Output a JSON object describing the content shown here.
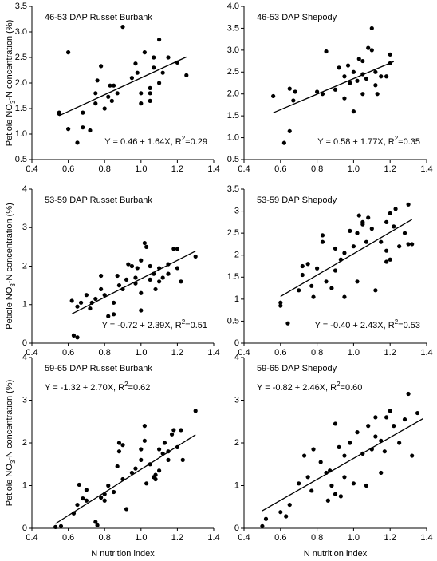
{
  "chart_data": [
    {
      "type": "scatter",
      "title": "46-53 DAP  Russet Burbank",
      "color": "#000000",
      "x": [
        0.55,
        0.55,
        0.6,
        0.6,
        0.65,
        0.68,
        0.68,
        0.72,
        0.75,
        0.75,
        0.76,
        0.78,
        0.8,
        0.82,
        0.83,
        0.84,
        0.85,
        0.87,
        0.9,
        0.95,
        0.97,
        0.98,
        1.0,
        1.02,
        1.05,
        1.05,
        1.05,
        1.07,
        1.07,
        1.1,
        1.1,
        1.12,
        1.15,
        1.2,
        1.25,
        1.0
      ],
      "y": [
        1.42,
        1.4,
        2.6,
        1.1,
        0.83,
        1.42,
        1.13,
        1.07,
        1.8,
        1.6,
        2.05,
        2.33,
        1.5,
        1.73,
        1.95,
        1.65,
        1.95,
        1.8,
        3.1,
        2.1,
        2.38,
        2.2,
        1.8,
        2.6,
        1.9,
        1.8,
        1.65,
        2.3,
        2.5,
        2.85,
        2.0,
        2.2,
        2.5,
        2.4,
        2.15,
        1.6
      ],
      "fit_line": {
        "x": [
          0.55,
          1.25
        ],
        "y": [
          1.36,
          2.51
        ]
      },
      "equation": [
        "Y = 0.46 + 1.64X, R",
        "2",
        "=0.29"
      ],
      "annotation_corner": "lower right",
      "y_label": [
        "Petiole NO",
        "3",
        "-N concentration (%)"
      ],
      "xlim": [
        0.4,
        1.4
      ],
      "xticks": [
        0.4,
        0.6,
        0.8,
        {
          "value": 1,
          "label": "1.0"
        },
        1.2,
        1.4
      ],
      "ylim": [
        0.5,
        3.5
      ],
      "yticks": [
        0.5,
        {
          "value": 1,
          "label": "1.0"
        },
        1.5,
        {
          "value": 2,
          "label": "2.0"
        },
        2.5,
        {
          "value": 3,
          "label": "3.0"
        },
        3.5
      ]
    },
    {
      "type": "scatter",
      "title": "46-53 DAP  Shepody",
      "color": "#000000",
      "x": [
        0.56,
        0.62,
        0.65,
        0.65,
        0.67,
        0.68,
        0.8,
        0.83,
        0.85,
        0.9,
        0.92,
        0.95,
        0.95,
        0.97,
        0.98,
        1.0,
        1.0,
        1.02,
        1.03,
        1.05,
        1.05,
        1.07,
        1.08,
        1.1,
        1.1,
        1.12,
        1.12,
        1.13,
        1.15,
        1.18,
        1.2,
        1.2,
        1.05
      ],
      "y": [
        1.95,
        0.88,
        1.15,
        2.12,
        1.85,
        2.05,
        2.05,
        2.0,
        2.97,
        2.1,
        2.6,
        2.4,
        1.9,
        2.65,
        2.25,
        1.6,
        2.5,
        2.3,
        2.8,
        2.75,
        2.0,
        2.35,
        3.05,
        3.0,
        3.5,
        2.5,
        2.2,
        2.0,
        2.4,
        2.4,
        2.7,
        2.9,
        2.45
      ],
      "fit_line": {
        "x": [
          0.56,
          1.22
        ],
        "y": [
          1.57,
          2.74
        ]
      },
      "equation": [
        "Y = 0.58 + 1.77X, R",
        "2",
        "=0.35"
      ],
      "annotation_corner": "lower right",
      "xlim": [
        0.4,
        1.4
      ],
      "xticks": [
        0.4,
        0.6,
        0.8,
        {
          "value": 1,
          "label": "1.0"
        },
        1.2,
        1.4
      ],
      "ylim": [
        0.5,
        4.0
      ],
      "yticks": [
        0.5,
        {
          "value": 1,
          "label": "1.0"
        },
        1.5,
        {
          "value": 2,
          "label": "2.0"
        },
        2.5,
        {
          "value": 3,
          "label": "3.0"
        },
        3.5,
        {
          "value": 4,
          "label": "4.0"
        }
      ]
    },
    {
      "type": "scatter",
      "title": "53-59 DAP  Russet Burbank",
      "color": "#000000",
      "x": [
        0.62,
        0.63,
        0.65,
        0.65,
        0.67,
        0.7,
        0.72,
        0.73,
        0.75,
        0.78,
        0.78,
        0.8,
        0.82,
        0.85,
        0.85,
        0.87,
        0.88,
        0.9,
        0.92,
        0.93,
        0.95,
        0.97,
        0.98,
        1.0,
        1.0,
        1.0,
        1.02,
        1.03,
        1.05,
        1.05,
        1.07,
        1.08,
        1.1,
        1.1,
        1.12,
        1.15,
        1.15,
        1.18,
        1.2,
        1.2,
        1.22,
        1.3,
        0.97
      ],
      "y": [
        1.1,
        0.2,
        0.15,
        0.95,
        1.05,
        1.25,
        0.9,
        1.05,
        1.15,
        1.75,
        1.4,
        1.25,
        0.7,
        0.75,
        1.05,
        1.75,
        1.5,
        1.4,
        1.65,
        2.05,
        2.0,
        1.55,
        1.95,
        0.85,
        1.3,
        2.15,
        2.6,
        2.5,
        2.0,
        1.65,
        1.8,
        1.4,
        1.95,
        1.6,
        1.7,
        1.8,
        2.05,
        2.45,
        1.95,
        2.45,
        1.6,
        2.25,
        1.7
      ],
      "fit_line": {
        "x": [
          0.62,
          1.3
        ],
        "y": [
          0.76,
          2.39
        ]
      },
      "equation": [
        "Y = -0.72 + 2.39X, R",
        "2",
        "=0.51"
      ],
      "annotation_corner": "lower right",
      "y_label": [
        "Petiole NO",
        "3",
        "-N concentration (%)"
      ],
      "xlim": [
        0.4,
        1.4
      ],
      "xticks": [
        0.4,
        0.6,
        0.8,
        {
          "value": 1,
          "label": "1.0"
        },
        1.2,
        1.4
      ],
      "ylim": [
        0,
        4
      ],
      "yticks": [
        0,
        1,
        2,
        3,
        4
      ]
    },
    {
      "type": "scatter",
      "title": "53-59 DAP  Shepody",
      "color": "#000000",
      "x": [
        0.6,
        0.6,
        0.64,
        0.7,
        0.72,
        0.72,
        0.75,
        0.77,
        0.78,
        0.8,
        0.83,
        0.83,
        0.85,
        0.88,
        0.9,
        0.9,
        0.93,
        0.95,
        0.95,
        0.98,
        1.0,
        1.02,
        1.02,
        1.03,
        1.05,
        1.07,
        1.08,
        1.1,
        1.12,
        1.15,
        1.18,
        1.18,
        1.18,
        1.2,
        1.2,
        1.22,
        1.23,
        1.25,
        1.28,
        1.3,
        1.3,
        1.32,
        1.05
      ],
      "y": [
        0.85,
        0.92,
        0.45,
        1.2,
        1.55,
        1.75,
        1.8,
        1.3,
        1.05,
        1.7,
        2.45,
        2.3,
        1.4,
        1.25,
        2.15,
        1.65,
        1.9,
        1.05,
        2.05,
        2.55,
        2.2,
        2.5,
        1.4,
        2.9,
        2.7,
        2.3,
        2.85,
        2.6,
        1.2,
        2.3,
        2.1,
        1.85,
        2.75,
        2.95,
        1.9,
        2.65,
        3.05,
        2.2,
        2.5,
        3.15,
        2.25,
        2.25,
        2.75
      ],
      "fit_line": {
        "x": [
          0.6,
          1.32
        ],
        "y": [
          1.06,
          2.81
        ]
      },
      "equation": [
        "Y = -0.40 + 2.43X, R",
        "2",
        "=0.53"
      ],
      "annotation_corner": "lower right",
      "xlim": [
        0.4,
        1.4
      ],
      "xticks": [
        0.4,
        0.6,
        0.8,
        {
          "value": 1,
          "label": "1.0"
        },
        1.2,
        1.4
      ],
      "ylim": [
        0,
        3.5
      ],
      "yticks": [
        0,
        0.5,
        1,
        1.5,
        2,
        2.5,
        3,
        3.5
      ]
    },
    {
      "type": "scatter",
      "title": "59-65 DAP  Russet Burbank",
      "color": "#000000",
      "x": [
        0.53,
        0.56,
        0.63,
        0.65,
        0.66,
        0.68,
        0.7,
        0.7,
        0.75,
        0.76,
        0.78,
        0.8,
        0.8,
        0.82,
        0.85,
        0.87,
        0.88,
        0.88,
        0.9,
        0.9,
        0.92,
        0.95,
        0.97,
        1.0,
        1.0,
        1.02,
        1.03,
        1.05,
        1.07,
        1.08,
        1.08,
        1.1,
        1.12,
        1.13,
        1.15,
        1.15,
        1.17,
        1.18,
        1.2,
        1.22,
        1.23,
        1.3,
        1.1,
        1.02
      ],
      "y": [
        0.03,
        0.05,
        0.35,
        0.55,
        1.02,
        0.7,
        0.9,
        0.65,
        0.15,
        0.07,
        0.72,
        0.65,
        0.8,
        1.0,
        0.85,
        1.45,
        1.8,
        2.0,
        1.95,
        1.15,
        0.45,
        1.3,
        1.4,
        1.85,
        1.6,
        2.4,
        1.05,
        1.5,
        1.2,
        1.25,
        1.15,
        1.35,
        1.75,
        2.0,
        1.8,
        1.6,
        2.2,
        2.3,
        1.9,
        2.3,
        1.6,
        2.75,
        1.85,
        2.05
      ],
      "fit_line": {
        "x": [
          0.53,
          1.3
        ],
        "y": [
          0.11,
          2.19
        ]
      },
      "equation": [
        "Y = -1.32 + 2.70X, R",
        "2",
        "=0.62"
      ],
      "annotation_corner": "upper left",
      "y_label": [
        "Petiole NO",
        "3",
        "-N concentration (%)"
      ],
      "x_label": "N nutrition index",
      "xlim": [
        0.4,
        1.4
      ],
      "xticks": [
        0.4,
        0.6,
        0.8,
        {
          "value": 1,
          "label": "1.0"
        },
        1.2,
        1.4
      ],
      "ylim": [
        0,
        4
      ],
      "yticks": [
        0,
        1,
        2,
        3,
        4
      ]
    },
    {
      "type": "scatter",
      "title": "59-65 DAP  Shepody",
      "color": "#000000",
      "x": [
        0.5,
        0.52,
        0.6,
        0.63,
        0.65,
        0.7,
        0.73,
        0.75,
        0.77,
        0.78,
        0.82,
        0.85,
        0.86,
        0.87,
        0.88,
        0.9,
        0.9,
        0.93,
        0.95,
        0.95,
        0.98,
        1.0,
        1.02,
        1.05,
        1.07,
        1.08,
        1.1,
        1.12,
        1.12,
        1.15,
        1.15,
        1.17,
        1.18,
        1.2,
        1.22,
        1.25,
        1.28,
        1.3,
        1.32,
        1.35,
        0.92
      ],
      "y": [
        0.05,
        0.22,
        0.38,
        0.28,
        0.55,
        1.05,
        1.7,
        1.2,
        0.88,
        1.85,
        1.55,
        1.3,
        0.65,
        1.35,
        1.0,
        2.45,
        0.8,
        0.75,
        1.7,
        1.2,
        2.0,
        1.05,
        2.25,
        1.75,
        1.0,
        2.4,
        1.85,
        2.15,
        2.6,
        1.3,
        2.05,
        1.8,
        2.6,
        2.75,
        2.4,
        2.0,
        2.55,
        3.15,
        1.7,
        2.7,
        1.9
      ],
      "fit_line": {
        "x": [
          0.5,
          1.38
        ],
        "y": [
          0.41,
          2.57
        ]
      },
      "equation": [
        "Y = -0.82 + 2.46X, R",
        "2",
        "=0.60"
      ],
      "annotation_corner": "upper left",
      "x_label": "N nutrition index",
      "xlim": [
        0.4,
        1.4
      ],
      "xticks": [
        0.4,
        0.6,
        0.8,
        {
          "value": 1,
          "label": "1.0"
        },
        1.2,
        1.4
      ],
      "ylim": [
        0,
        4
      ],
      "yticks": [
        0,
        1,
        2,
        3,
        4
      ]
    }
  ]
}
